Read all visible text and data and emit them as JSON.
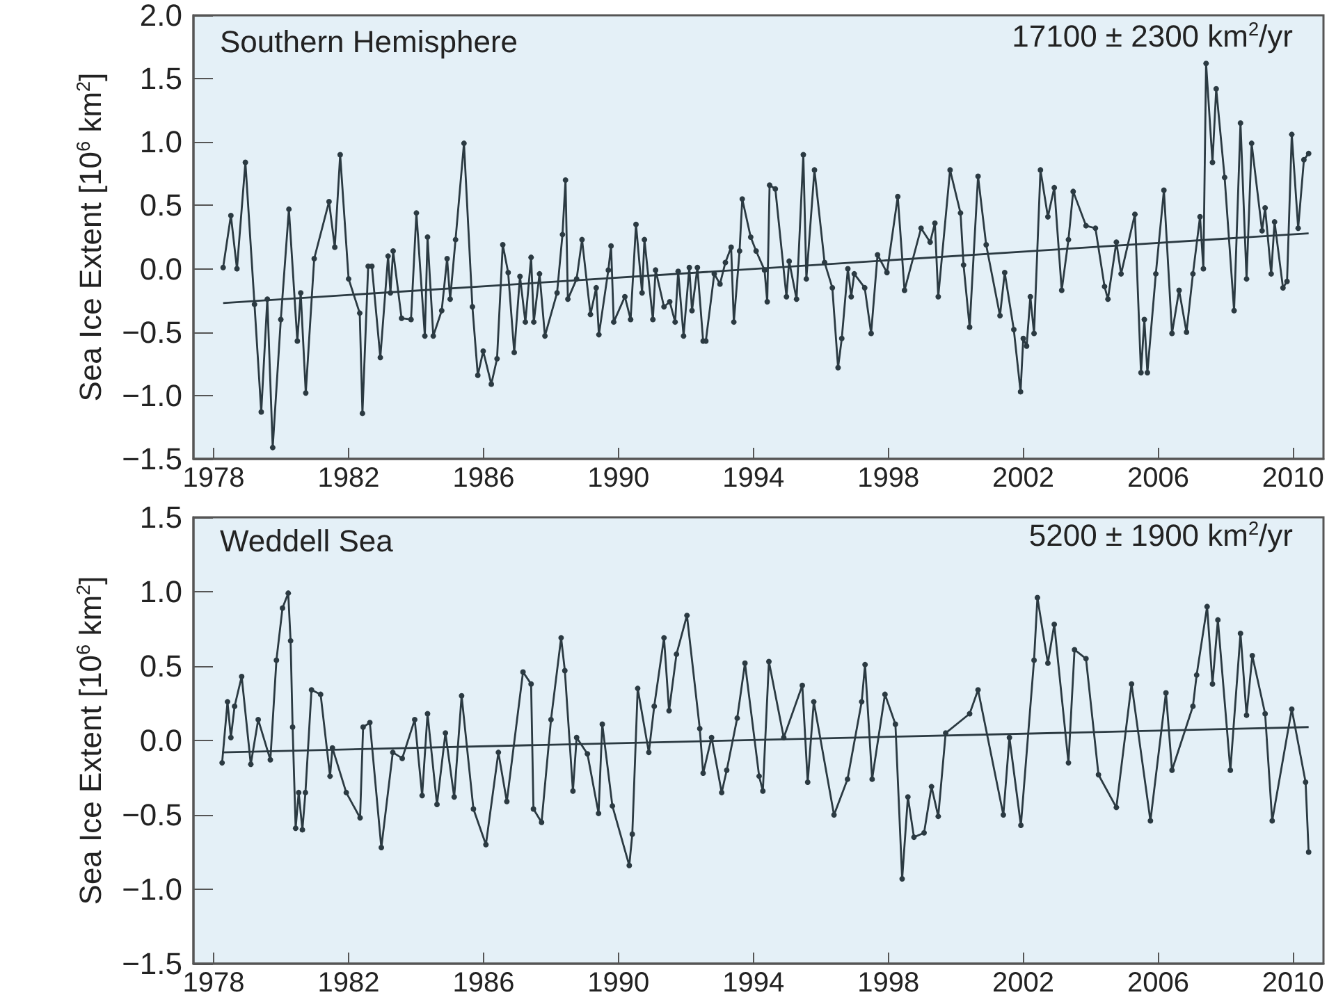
{
  "chart_data": [
    {
      "type": "line",
      "title": "Southern Hemisphere",
      "ylabel": "Sea Ice Extent [10$^{6}$ km$^{2}$]",
      "annotations": [
        "17100 ± 2300 km$^{2}$/yr"
      ],
      "marker": "circle",
      "xlim": [
        1977.4,
        2010.9
      ],
      "xticks": [
        1978,
        1982,
        1986,
        1990,
        1994,
        1998,
        2002,
        2006,
        2010
      ],
      "ylim": [
        -1.5,
        2.0
      ],
      "yticks": [
        {
          "value": -1.5,
          "label": "−1.5"
        },
        {
          "value": -1,
          "label": "−1.0"
        },
        {
          "value": -0.5,
          "label": "−0.5"
        },
        {
          "value": 0,
          "label": "0.0"
        },
        {
          "value": 0.5,
          "label": "0.5"
        },
        {
          "value": 1,
          "label": "1.0"
        },
        {
          "value": 1.5,
          "label": "1.5"
        },
        {
          "value": 2,
          "label": "2.0"
        }
      ],
      "series": [
        {
          "color": "#2b3a42",
          "x": [
            1978.28,
            1978.51,
            1978.69,
            1978.94,
            1979.21,
            1979.41,
            1979.59,
            1979.75,
            1979.99,
            1980.23,
            1980.48,
            1980.58,
            1980.73,
            1980.98,
            1981.42,
            1981.59,
            1981.75,
            1982.0,
            1982.33,
            1982.41,
            1982.58,
            1982.69,
            1982.94,
            1983.17,
            1983.24,
            1983.32,
            1983.57,
            1983.85,
            1984.01,
            1984.26,
            1984.34,
            1984.51,
            1984.76,
            1984.92,
            1985.01,
            1985.17,
            1985.42,
            1985.67,
            1985.83,
            1985.99,
            1986.23,
            1986.4,
            1986.57,
            1986.73,
            1986.91,
            1987.08,
            1987.24,
            1987.41,
            1987.49,
            1987.66,
            1987.82,
            1988.18,
            1988.34,
            1988.43,
            1988.5,
            1988.76,
            1988.92,
            1989.17,
            1989.34,
            1989.42,
            1989.7,
            1989.78,
            1989.86,
            1990.19,
            1990.36,
            1990.52,
            1990.7,
            1990.77,
            1991.02,
            1991.1,
            1991.35,
            1991.52,
            1991.68,
            1991.77,
            1991.93,
            1992.1,
            1992.18,
            1992.34,
            1992.51,
            1992.59,
            1992.84,
            1993.01,
            1993.17,
            1993.34,
            1993.42,
            1993.59,
            1993.67,
            1993.92,
            1994.08,
            1994.33,
            1994.41,
            1994.48,
            1994.65,
            1994.98,
            1995.06,
            1995.28,
            1995.48,
            1995.57,
            1995.81,
            1996.11,
            1996.34,
            1996.51,
            1996.62,
            1996.8,
            1996.9,
            1996.99,
            1997.3,
            1997.49,
            1997.68,
            1997.96,
            1998.28,
            1998.48,
            1998.97,
            1999.24,
            1999.38,
            1999.48,
            1999.83,
            2000.14,
            2000.23,
            2000.41,
            2000.66,
            2000.9,
            2001.31,
            2001.45,
            2001.72,
            2001.92,
            2002.0,
            2002.1,
            2002.21,
            2002.32,
            2002.51,
            2002.73,
            2002.92,
            2003.14,
            2003.34,
            2003.48,
            2003.86,
            2004.14,
            2004.41,
            2004.51,
            2004.76,
            2004.9,
            2005.31,
            2005.49,
            2005.59,
            2005.68,
            2005.93,
            2006.17,
            2006.41,
            2006.62,
            2006.84,
            2007.03,
            2007.24,
            2007.34,
            2007.42,
            2007.61,
            2007.72,
            2007.97,
            2008.25,
            2008.44,
            2008.62,
            2008.77,
            2009.08,
            2009.17,
            2009.35,
            2009.45,
            2009.7,
            2009.82,
            2009.96,
            2010.15,
            2010.32,
            2010.46
          ],
          "values": [
            0.01,
            0.42,
            0.0,
            0.84,
            -0.28,
            -1.13,
            -0.24,
            -1.41,
            -0.4,
            0.47,
            -0.57,
            -0.19,
            -0.98,
            0.08,
            0.53,
            0.17,
            0.9,
            -0.08,
            -0.35,
            -1.14,
            0.02,
            0.02,
            -0.7,
            0.1,
            -0.19,
            0.14,
            -0.39,
            -0.4,
            0.44,
            -0.53,
            0.25,
            -0.53,
            -0.33,
            0.08,
            -0.24,
            0.23,
            0.99,
            -0.3,
            -0.84,
            -0.65,
            -0.91,
            -0.71,
            0.19,
            -0.03,
            -0.66,
            -0.06,
            -0.42,
            0.09,
            -0.42,
            -0.04,
            -0.53,
            -0.19,
            0.27,
            0.7,
            -0.24,
            -0.08,
            0.23,
            -0.36,
            -0.15,
            -0.52,
            -0.01,
            0.18,
            -0.42,
            -0.22,
            -0.4,
            0.35,
            -0.19,
            0.23,
            -0.4,
            -0.01,
            -0.3,
            -0.26,
            -0.42,
            -0.02,
            -0.53,
            0.01,
            -0.33,
            0.01,
            -0.57,
            -0.57,
            -0.04,
            -0.12,
            0.05,
            0.17,
            -0.42,
            0.14,
            0.55,
            0.25,
            0.14,
            -0.01,
            -0.26,
            0.66,
            0.63,
            -0.22,
            0.06,
            -0.24,
            0.9,
            -0.08,
            0.78,
            0.05,
            -0.15,
            -0.78,
            -0.55,
            0.0,
            -0.22,
            -0.04,
            -0.15,
            -0.51,
            0.11,
            -0.03,
            0.57,
            -0.17,
            0.32,
            0.21,
            0.36,
            -0.22,
            0.78,
            0.44,
            0.03,
            -0.46,
            0.73,
            0.19,
            -0.37,
            -0.03,
            -0.48,
            -0.97,
            -0.55,
            -0.61,
            -0.22,
            -0.51,
            0.78,
            0.41,
            0.64,
            -0.17,
            0.23,
            0.61,
            0.34,
            0.32,
            -0.14,
            -0.24,
            0.21,
            -0.04,
            0.43,
            -0.82,
            -0.4,
            -0.82,
            -0.04,
            0.62,
            -0.51,
            -0.17,
            -0.5,
            -0.04,
            0.41,
            0.0,
            1.62,
            0.84,
            1.42,
            0.72,
            -0.33,
            1.15,
            -0.08,
            0.99,
            0.3,
            0.48,
            -0.04,
            0.37,
            -0.15,
            -0.1,
            1.06,
            0.32,
            0.86,
            0.91
          ]
        },
        {
          "type": "line",
          "color": "#2b3a42",
          "marker": "none",
          "x": [
            1978.28,
            2010.46
          ],
          "values": [
            -0.27,
            0.28
          ]
        }
      ]
    },
    {
      "type": "line",
      "title": "Weddell Sea",
      "ylabel": "Sea Ice Extent [10$^{6}$ km$^{2}$]",
      "annotations": [
        "5200 ± 1900 km$^{2}$/yr"
      ],
      "marker": "circle",
      "xlim": [
        1977.4,
        2010.9
      ],
      "xticks": [
        1978,
        1982,
        1986,
        1990,
        1994,
        1998,
        2002,
        2006,
        2010
      ],
      "ylim": [
        -1.5,
        1.5
      ],
      "yticks": [
        {
          "value": -1.5,
          "label": "−1.5"
        },
        {
          "value": -1,
          "label": "−1.0"
        },
        {
          "value": -0.5,
          "label": "−0.5"
        },
        {
          "value": 0,
          "label": "0.0"
        },
        {
          "value": 0.5,
          "label": "0.5"
        },
        {
          "value": 1,
          "label": "1.0"
        },
        {
          "value": 1.5,
          "label": "1.5"
        }
      ],
      "series": [
        {
          "color": "#2b3a42",
          "x": [
            1978.25,
            1978.41,
            1978.51,
            1978.62,
            1978.83,
            1979.1,
            1979.32,
            1979.68,
            1979.86,
            1980.04,
            1980.21,
            1980.28,
            1980.34,
            1980.43,
            1980.52,
            1980.63,
            1980.72,
            1980.9,
            1981.17,
            1981.45,
            1981.52,
            1981.93,
            1982.34,
            1982.43,
            1982.63,
            1982.97,
            1983.31,
            1983.59,
            1983.96,
            1984.18,
            1984.34,
            1984.62,
            1984.87,
            1985.13,
            1985.35,
            1985.7,
            1986.07,
            1986.44,
            1986.69,
            1987.17,
            1987.41,
            1987.48,
            1987.72,
            1988.0,
            1988.3,
            1988.41,
            1988.65,
            1988.76,
            1989.08,
            1989.41,
            1989.52,
            1989.82,
            1990.32,
            1990.41,
            1990.57,
            1990.9,
            1991.06,
            1991.35,
            1991.5,
            1991.72,
            1992.03,
            1992.41,
            1992.51,
            1992.76,
            1993.06,
            1993.21,
            1993.52,
            1993.75,
            1994.17,
            1994.28,
            1994.46,
            1994.9,
            1995.45,
            1995.61,
            1995.79,
            1996.39,
            1996.79,
            1997.21,
            1997.31,
            1997.52,
            1997.9,
            1998.21,
            1998.41,
            1998.58,
            1998.76,
            1999.06,
            1999.28,
            1999.48,
            1999.7,
            2000.41,
            2000.66,
            2001.41,
            2001.59,
            2001.93,
            2002.32,
            2002.42,
            2002.73,
            2002.92,
            2003.34,
            2003.52,
            2003.86,
            2004.23,
            2004.76,
            2005.21,
            2005.77,
            2006.23,
            2006.41,
            2007.03,
            2007.14,
            2007.45,
            2007.61,
            2007.77,
            2008.14,
            2008.44,
            2008.62,
            2008.79,
            2009.17,
            2009.38,
            2009.96,
            2010.37,
            2010.46
          ],
          "values": [
            -0.15,
            0.26,
            0.02,
            0.23,
            0.43,
            -0.16,
            0.14,
            -0.13,
            0.54,
            0.89,
            0.99,
            0.67,
            0.09,
            -0.59,
            -0.35,
            -0.6,
            -0.35,
            0.34,
            0.31,
            -0.24,
            -0.05,
            -0.35,
            -0.52,
            0.09,
            0.12,
            -0.72,
            -0.08,
            -0.12,
            0.14,
            -0.37,
            0.18,
            -0.43,
            0.05,
            -0.38,
            0.3,
            -0.46,
            -0.7,
            -0.08,
            -0.41,
            0.46,
            0.38,
            -0.46,
            -0.55,
            0.14,
            0.69,
            0.47,
            -0.34,
            0.02,
            -0.09,
            -0.49,
            0.11,
            -0.44,
            -0.84,
            -0.63,
            0.35,
            -0.08,
            0.23,
            0.69,
            0.2,
            0.58,
            0.84,
            0.08,
            -0.22,
            0.02,
            -0.35,
            -0.2,
            0.15,
            0.52,
            -0.24,
            -0.34,
            0.53,
            0.02,
            0.37,
            -0.28,
            0.26,
            -0.5,
            -0.26,
            0.26,
            0.51,
            -0.26,
            0.31,
            0.11,
            -0.93,
            -0.38,
            -0.65,
            -0.62,
            -0.31,
            -0.51,
            0.05,
            0.18,
            0.34,
            -0.5,
            0.02,
            -0.57,
            0.54,
            0.96,
            0.52,
            0.78,
            -0.15,
            0.61,
            0.55,
            -0.23,
            -0.45,
            0.38,
            -0.54,
            0.32,
            -0.2,
            0.23,
            0.44,
            0.9,
            0.38,
            0.81,
            -0.2,
            0.72,
            0.17,
            0.57,
            0.18,
            -0.54,
            0.21,
            -0.28,
            -0.75
          ]
        },
        {
          "type": "line",
          "color": "#2b3a42",
          "marker": "none",
          "x": [
            1978.25,
            2010.46
          ],
          "values": [
            -0.08,
            0.09
          ]
        }
      ]
    }
  ]
}
